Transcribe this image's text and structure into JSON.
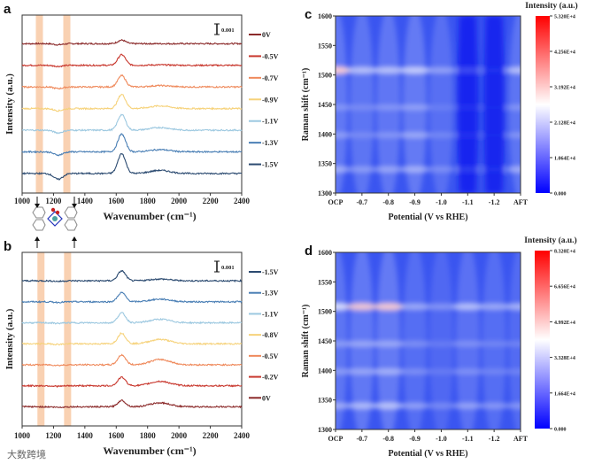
{
  "chart_data": [
    {
      "panel": "a",
      "type": "line",
      "xlabel": "Wavenumber (cm-1)",
      "ylabel": "Intensity (a.u.)",
      "xlim": [
        1000,
        2400
      ],
      "xticks": [
        "1000",
        "1200",
        "1400",
        "1600",
        "1800",
        "2000",
        "2200",
        "2400"
      ],
      "scale_bar": "0.001",
      "highlight_bands": [
        1110,
        1285
      ],
      "series": [
        {
          "name": "0V",
          "color": "#8b2a2a",
          "peak": 0.5,
          "broad": 0.0,
          "dip": 0.2
        },
        {
          "name": "-0.5V",
          "color": "#c8372d",
          "peak": 1.5,
          "broad": 0.1,
          "dip": 0.2
        },
        {
          "name": "-0.7V",
          "color": "#ef8a5c",
          "peak": 1.6,
          "broad": 0.3,
          "dip": 0.3
        },
        {
          "name": "-0.9V",
          "color": "#f6d27a",
          "peak": 2.0,
          "broad": 0.6,
          "dip": 0.4
        },
        {
          "name": "-1.1V",
          "color": "#9cc8e0",
          "peak": 2.2,
          "broad": 0.6,
          "dip": 0.5
        },
        {
          "name": "-1.3V",
          "color": "#4a7fb5",
          "peak": 2.5,
          "broad": 0.5,
          "dip": 0.6
        },
        {
          "name": "-1.5V",
          "color": "#2b4a70",
          "peak": 2.8,
          "broad": 0.7,
          "dip": 1.1
        }
      ]
    },
    {
      "panel": "b",
      "type": "line",
      "xlabel": "Wavenumber (cm-1)",
      "ylabel": "Intensity (a.u.)",
      "xlim": [
        1000,
        2400
      ],
      "xticks": [
        "1000",
        "1200",
        "1400",
        "1600",
        "1800",
        "2000",
        "2200",
        "2400"
      ],
      "scale_bar": "0.001",
      "highlight_bands": [
        1120,
        1290
      ],
      "series": [
        {
          "name": "-1.5V",
          "color": "#2b4a70",
          "peak": 1.4,
          "broad": 0.4,
          "dip": 0.1
        },
        {
          "name": "-1.3V",
          "color": "#4a7fb5",
          "peak": 1.3,
          "broad": 0.6,
          "dip": 0.1
        },
        {
          "name": "-1.1V",
          "color": "#9cc8e0",
          "peak": 1.4,
          "broad": 0.8,
          "dip": 0.1
        },
        {
          "name": "-0.8V",
          "color": "#f6d27a",
          "peak": 1.5,
          "broad": 1.0,
          "dip": 0.1
        },
        {
          "name": "-0.5V",
          "color": "#ef8a5c",
          "peak": 1.4,
          "broad": 1.2,
          "dip": 0.1
        },
        {
          "name": "-0.2V",
          "color": "#c8372d",
          "peak": 1.2,
          "broad": 1.0,
          "dip": 0.1
        },
        {
          "name": "0V",
          "color": "#8b2a2a",
          "peak": 0.9,
          "broad": 0.9,
          "dip": 0.1
        }
      ]
    },
    {
      "panel": "c",
      "type": "heatmap",
      "xlabel": "Potential (V vs RHE)",
      "ylabel": "Raman shift (cm-1)",
      "xticks": [
        "OCP",
        "-0.7",
        "-0.8",
        "-0.9",
        "-1.0",
        "-1.1",
        "-1.2",
        "AFT"
      ],
      "yticks": [
        "1300",
        "1350",
        "1400",
        "1450",
        "1500",
        "1550",
        "1600"
      ],
      "ylim": [
        1300,
        1600
      ],
      "colorbar_title": "Intensity (a.u.)",
      "colorbar_ticks": [
        "0.000",
        "1.064E+4",
        "2.128E+4",
        "3.192E+4",
        "4.256E+4",
        "5.320E+4"
      ],
      "bands": [
        1340,
        1398,
        1445,
        1508
      ],
      "band_intensity": [
        [
          0.35,
          0.25,
          0.3,
          0.35,
          0.2,
          0.1,
          0.05,
          0.35
        ],
        [
          0.25,
          0.15,
          0.2,
          0.3,
          0.15,
          0.05,
          0.02,
          0.2
        ],
        [
          0.2,
          0.15,
          0.2,
          0.25,
          0.1,
          0.05,
          0.02,
          0.2
        ],
        [
          0.75,
          0.45,
          0.45,
          0.5,
          0.3,
          0.15,
          0.05,
          0.45
        ]
      ],
      "column_level": [
        0.3,
        0.25,
        0.28,
        0.32,
        0.18,
        0.05,
        0.0,
        0.25
      ]
    },
    {
      "panel": "d",
      "type": "heatmap",
      "xlabel": "Potential (V vs RHE)",
      "ylabel": "Raman shift (cm-1)",
      "xticks": [
        "OCP",
        "-0.7",
        "-0.8",
        "-0.9",
        "-1.0",
        "-1.1",
        "-1.2",
        "AFT"
      ],
      "yticks": [
        "1300",
        "1350",
        "1400",
        "1450",
        "1500",
        "1550",
        "1600"
      ],
      "ylim": [
        1300,
        1600
      ],
      "colorbar_title": "Intensity (a.u.)",
      "colorbar_ticks": [
        "0.000",
        "1.664E+4",
        "3.328E+4",
        "4.992E+4",
        "6.656E+4",
        "8.320E+4"
      ],
      "bands": [
        1340,
        1398,
        1445,
        1508
      ],
      "band_intensity": [
        [
          0.35,
          0.4,
          0.45,
          0.3,
          0.2,
          0.3,
          0.25,
          0.25
        ],
        [
          0.25,
          0.3,
          0.35,
          0.2,
          0.12,
          0.2,
          0.15,
          0.15
        ],
        [
          0.25,
          0.3,
          0.3,
          0.2,
          0.12,
          0.2,
          0.15,
          0.15
        ],
        [
          0.6,
          0.7,
          0.72,
          0.35,
          0.25,
          0.45,
          0.35,
          0.4
        ]
      ],
      "column_level": [
        0.25,
        0.3,
        0.32,
        0.15,
        0.08,
        0.2,
        0.15,
        0.12
      ]
    }
  ],
  "panel_labels": [
    "a",
    "b",
    "c",
    "d"
  ],
  "watermark": "大数跨境"
}
